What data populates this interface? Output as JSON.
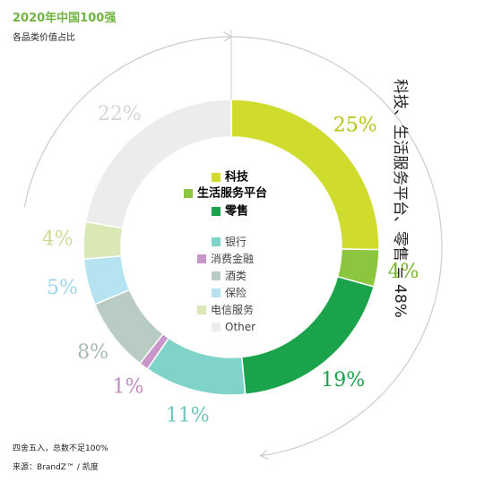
{
  "header": {
    "title": "2020年中国100强",
    "subtitle": "各品类价值占比"
  },
  "footer": {
    "note": "四舍五入，总数不足100%",
    "source": "来源：BrandZ™ / 凯度"
  },
  "group_annotation": "科技、生活服务平台、零售 = 48%",
  "colors": {
    "tech": "#cfdc2e",
    "lifestyle": "#8cc63f",
    "retail": "#1aa34a",
    "bank": "#7fd3c8",
    "consumer_finance": "#c896c8",
    "alcohol": "#b9ccc3",
    "insurance": "#b5e3f0",
    "telecom": "#d9e8b4",
    "other": "#ececec",
    "arc": "#cccccc"
  },
  "chart_data": {
    "type": "pie",
    "donut": true,
    "legend_placement": "center",
    "slices": [
      {
        "name": "科技",
        "value": 25,
        "label": "25%",
        "color": "#cfdc2e",
        "label_color": "#b8c416",
        "legend_bold": true
      },
      {
        "name": "生活服务平台",
        "value": 4,
        "label": "4%",
        "color": "#8cc63f",
        "label_color": "#7ab52f",
        "legend_bold": true
      },
      {
        "name": "零售",
        "value": 19,
        "label": "19%",
        "color": "#1aa34a",
        "label_color": "#1aa34a",
        "legend_bold": true
      },
      {
        "name": "银行",
        "value": 11,
        "label": "11%",
        "color": "#7fd3c8",
        "label_color": "#6cc6bb",
        "legend_bold": false
      },
      {
        "name": "消费金融",
        "value": 1,
        "label": "1%",
        "color": "#c896c8",
        "label_color": "#c08ac0",
        "legend_bold": false
      },
      {
        "name": "酒类",
        "value": 8,
        "label": "8%",
        "color": "#b9ccc3",
        "label_color": "#a6bab0",
        "legend_bold": false
      },
      {
        "name": "保险",
        "value": 5,
        "label": "5%",
        "color": "#b5e3f0",
        "label_color": "#9dd6ea",
        "legend_bold": false
      },
      {
        "name": "电信服务",
        "value": 4,
        "label": "4%",
        "color": "#d9e8b4",
        "label_color": "#c8dc95",
        "legend_bold": false
      },
      {
        "name": "Other",
        "value": 22,
        "label": "22%",
        "color": "#ececec",
        "label_color": "#d6d6d6",
        "legend_bold": false
      }
    ]
  }
}
